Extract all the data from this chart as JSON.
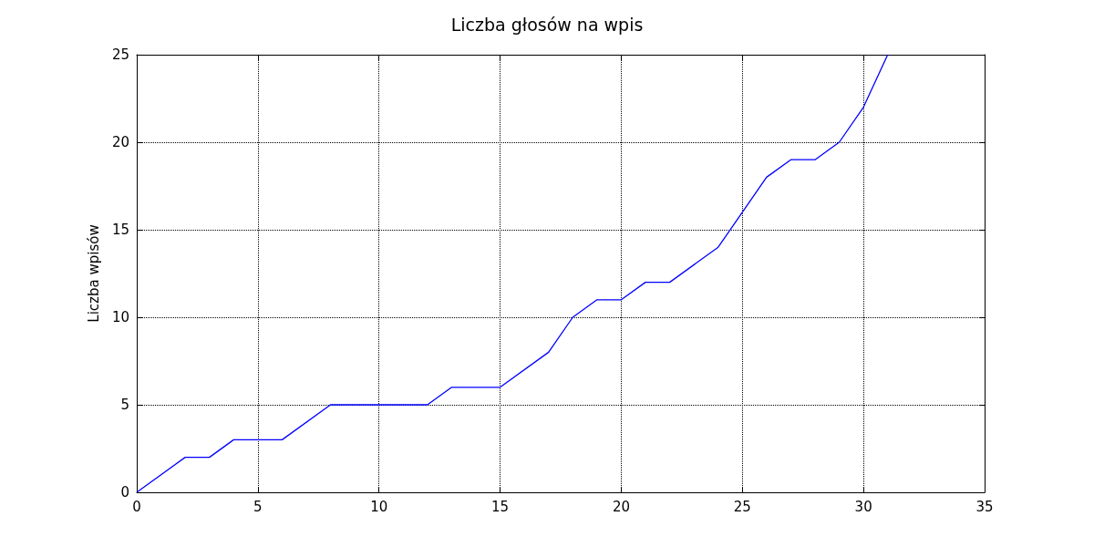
{
  "chart_data": {
    "type": "line",
    "title": "Liczba głosów na wpis",
    "ylabel": "Liczba wpisów",
    "x": [
      0,
      2,
      3,
      4,
      6,
      8,
      12,
      13,
      15,
      17,
      18,
      19,
      20,
      21,
      22,
      24,
      26,
      27,
      28,
      29,
      30,
      31
    ],
    "series": [
      {
        "color": "#0000ff",
        "values": [
          0,
          2,
          2,
          3,
          3,
          5,
          5,
          6,
          6,
          8,
          10,
          11,
          11,
          12,
          12,
          14,
          18,
          19,
          19,
          20,
          22,
          25
        ]
      }
    ],
    "xlim": [
      0,
      35
    ],
    "xticks": [
      0,
      5,
      10,
      15,
      20,
      25,
      30,
      35
    ],
    "ylim": [
      0,
      25
    ],
    "yticks": [
      0,
      5,
      10,
      15,
      20,
      25
    ],
    "grid": true,
    "marker": "none",
    "line_style": "solid"
  }
}
